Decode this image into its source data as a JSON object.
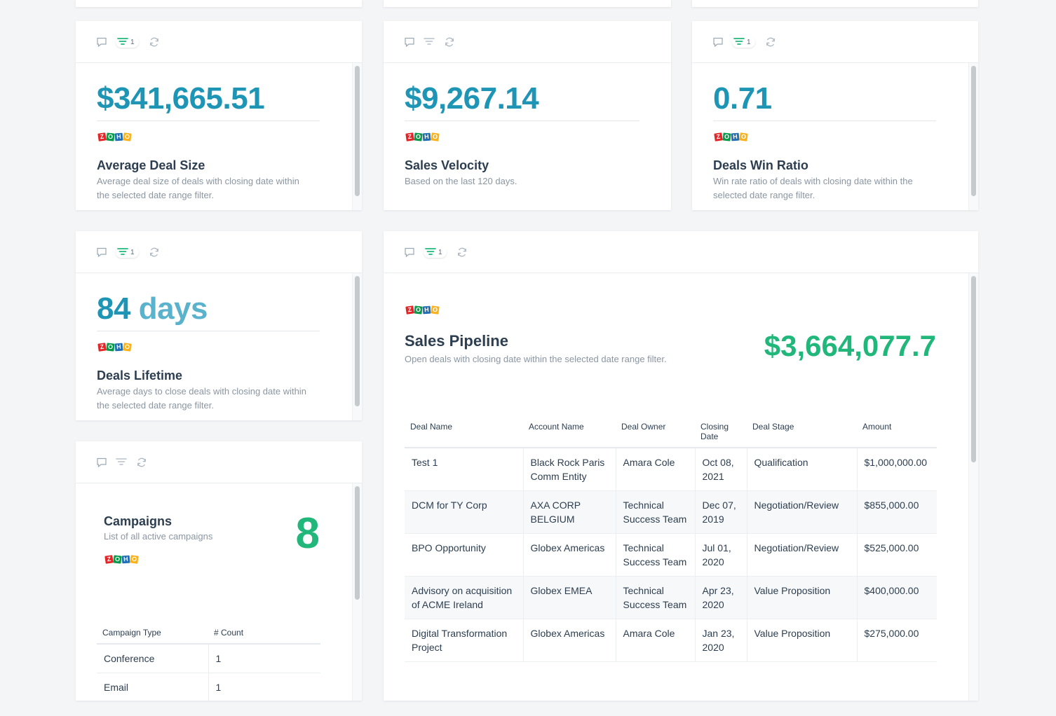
{
  "toolbar": {
    "filter_count": "1"
  },
  "avg_deal": {
    "value": "$341,665.51",
    "title": "Average Deal Size",
    "desc": "Average deal size of deals with closing date within the selected date range filter."
  },
  "velocity": {
    "value": "$9,267.14",
    "title": "Sales Velocity",
    "desc": "Based on the last 120 days."
  },
  "win_ratio": {
    "value": "0.71",
    "title": "Deals Win Ratio",
    "desc": "Win rate ratio of deals with closing date within the selected date range filter."
  },
  "lifetime": {
    "value": "84",
    "unit": "days",
    "title": "Deals Lifetime",
    "desc": "Average days to close deals with closing date within the selected date range filter."
  },
  "campaigns": {
    "title": "Campaigns",
    "desc": "List of all active campaigns",
    "count": "8",
    "columns": [
      "Campaign Type",
      "# Count"
    ],
    "rows": [
      [
        "Conference",
        "1"
      ],
      [
        "Email",
        "1"
      ]
    ]
  },
  "pipeline": {
    "title": "Sales Pipeline",
    "desc": "Open deals with closing date within the selected date range filter.",
    "total": "$3,664,077.7",
    "columns": [
      "Deal Name",
      "Account Name",
      "Deal Owner",
      "Closing Date",
      "Deal Stage",
      "Amount"
    ],
    "rows": [
      [
        "Test 1",
        "Black Rock Paris Comm Entity",
        "Amara Cole",
        "Oct 08, 2021",
        "Qualification",
        "$1,000,000.00"
      ],
      [
        "DCM for TY Corp",
        "AXA CORP BELGIUM",
        "Technical Success Team",
        "Dec 07, 2019",
        "Negotiation/Review",
        "$855,000.00"
      ],
      [
        "BPO Opportunity",
        "Globex Americas",
        "Technical Success Team",
        "Jul 01, 2020",
        "Negotiation/Review",
        "$525,000.00"
      ],
      [
        "Advisory on acquisition of ACME Ireland",
        "Globex EMEA",
        "Technical Success Team",
        "Apr 23, 2020",
        "Value Proposition",
        "$400,000.00"
      ],
      [
        "Digital Transformation Project",
        "Globex Americas",
        "Amara Cole",
        "Jan 23, 2020",
        "Value Proposition",
        "$275,000.00"
      ]
    ]
  },
  "logo": {
    "letters": [
      "Z",
      "O",
      "H",
      "O"
    ]
  },
  "colors": {
    "accent_blue": "#1f95b5",
    "accent_green": "#21b77b",
    "filter_active": "#21b77b"
  }
}
